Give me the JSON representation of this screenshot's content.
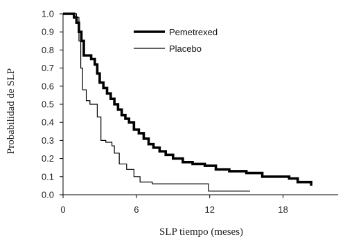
{
  "chart_data": {
    "type": "line",
    "xlabel": "SLP tiempo (meses)",
    "ylabel": "Probabilidad de SLP",
    "xlim": [
      0,
      22.5
    ],
    "ylim": [
      0,
      1.0
    ],
    "x_ticks": [
      0,
      6,
      12,
      18
    ],
    "x_tick_labels": [
      "0",
      "6",
      "12",
      "18"
    ],
    "y_ticks": [
      0,
      0.1,
      0.2,
      0.3,
      0.4,
      0.5,
      0.6,
      0.7,
      0.8,
      0.9,
      1.0
    ],
    "y_tick_labels": [
      "0.0",
      "0.1",
      "0.2",
      "0.3",
      "0.4",
      "0.5",
      "0.6",
      "0.7",
      "0.8",
      "0.9",
      "1.0"
    ],
    "grid": false,
    "legend_position": "top-right",
    "series": [
      {
        "name": "Pemetrexed",
        "color": "#000000",
        "style": "thick",
        "step": true,
        "x": [
          0,
          0.9,
          1.1,
          1.3,
          1.5,
          1.7,
          2.3,
          2.6,
          2.8,
          3.0,
          3.3,
          3.6,
          3.9,
          4.2,
          4.5,
          4.8,
          5.1,
          5.4,
          5.8,
          6.2,
          6.6,
          7.0,
          7.4,
          7.9,
          8.4,
          9.0,
          9.8,
          10.6,
          11.6,
          12.5,
          13.6,
          15.0,
          16.3,
          18.5,
          19.2,
          20.3
        ],
        "y": [
          1.0,
          0.98,
          0.95,
          0.9,
          0.85,
          0.77,
          0.75,
          0.72,
          0.67,
          0.62,
          0.59,
          0.56,
          0.53,
          0.5,
          0.47,
          0.44,
          0.42,
          0.4,
          0.36,
          0.34,
          0.31,
          0.28,
          0.26,
          0.24,
          0.22,
          0.2,
          0.18,
          0.17,
          0.16,
          0.14,
          0.13,
          0.12,
          0.1,
          0.09,
          0.07,
          0.05
        ]
      },
      {
        "name": "Placebo",
        "color": "#000000",
        "style": "thin",
        "step": true,
        "x": [
          0,
          1.1,
          1.3,
          1.45,
          1.6,
          1.9,
          2.2,
          2.8,
          3.1,
          3.5,
          4.0,
          4.2,
          4.6,
          5.2,
          5.8,
          6.3,
          7.3,
          11.5,
          11.9,
          15.3
        ],
        "y": [
          1.0,
          0.98,
          0.85,
          0.7,
          0.58,
          0.52,
          0.5,
          0.43,
          0.3,
          0.29,
          0.27,
          0.23,
          0.17,
          0.14,
          0.1,
          0.07,
          0.06,
          0.06,
          0.02,
          0.02
        ]
      }
    ]
  }
}
